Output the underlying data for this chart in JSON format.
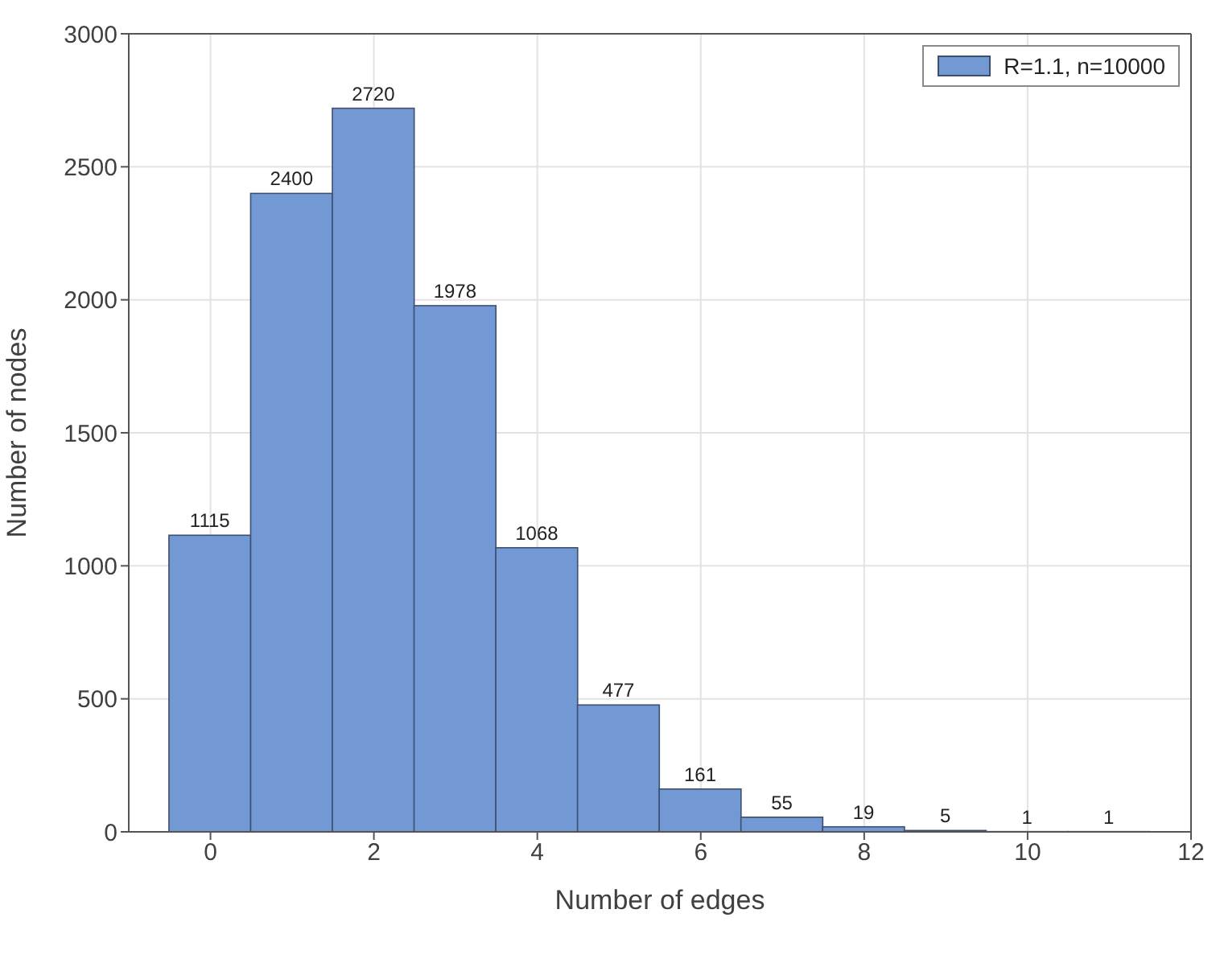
{
  "chart_data": {
    "type": "histogram",
    "xlabel": "Number of edges",
    "ylabel": "Number of nodes",
    "bins": [
      -0.5,
      0.5,
      1.5,
      2.5,
      3.5,
      4.5,
      5.5,
      6.5,
      7.5,
      8.5,
      9.5,
      10.5,
      11.5
    ],
    "series": [
      {
        "name": "R=1.1, n=10000",
        "color": "#7399d4",
        "values": [
          1115,
          2400,
          2720,
          1978,
          1068,
          477,
          161,
          55,
          19,
          5,
          1,
          1
        ]
      }
    ],
    "xlim": [
      -1,
      12
    ],
    "xticks": [
      0,
      2,
      4,
      6,
      8,
      10,
      12
    ],
    "ylim": [
      0,
      3000
    ],
    "yticks": [
      0,
      500,
      1000,
      1500,
      2000,
      2500,
      3000
    ],
    "grid": true,
    "legend": "top right",
    "data_labels": true
  }
}
